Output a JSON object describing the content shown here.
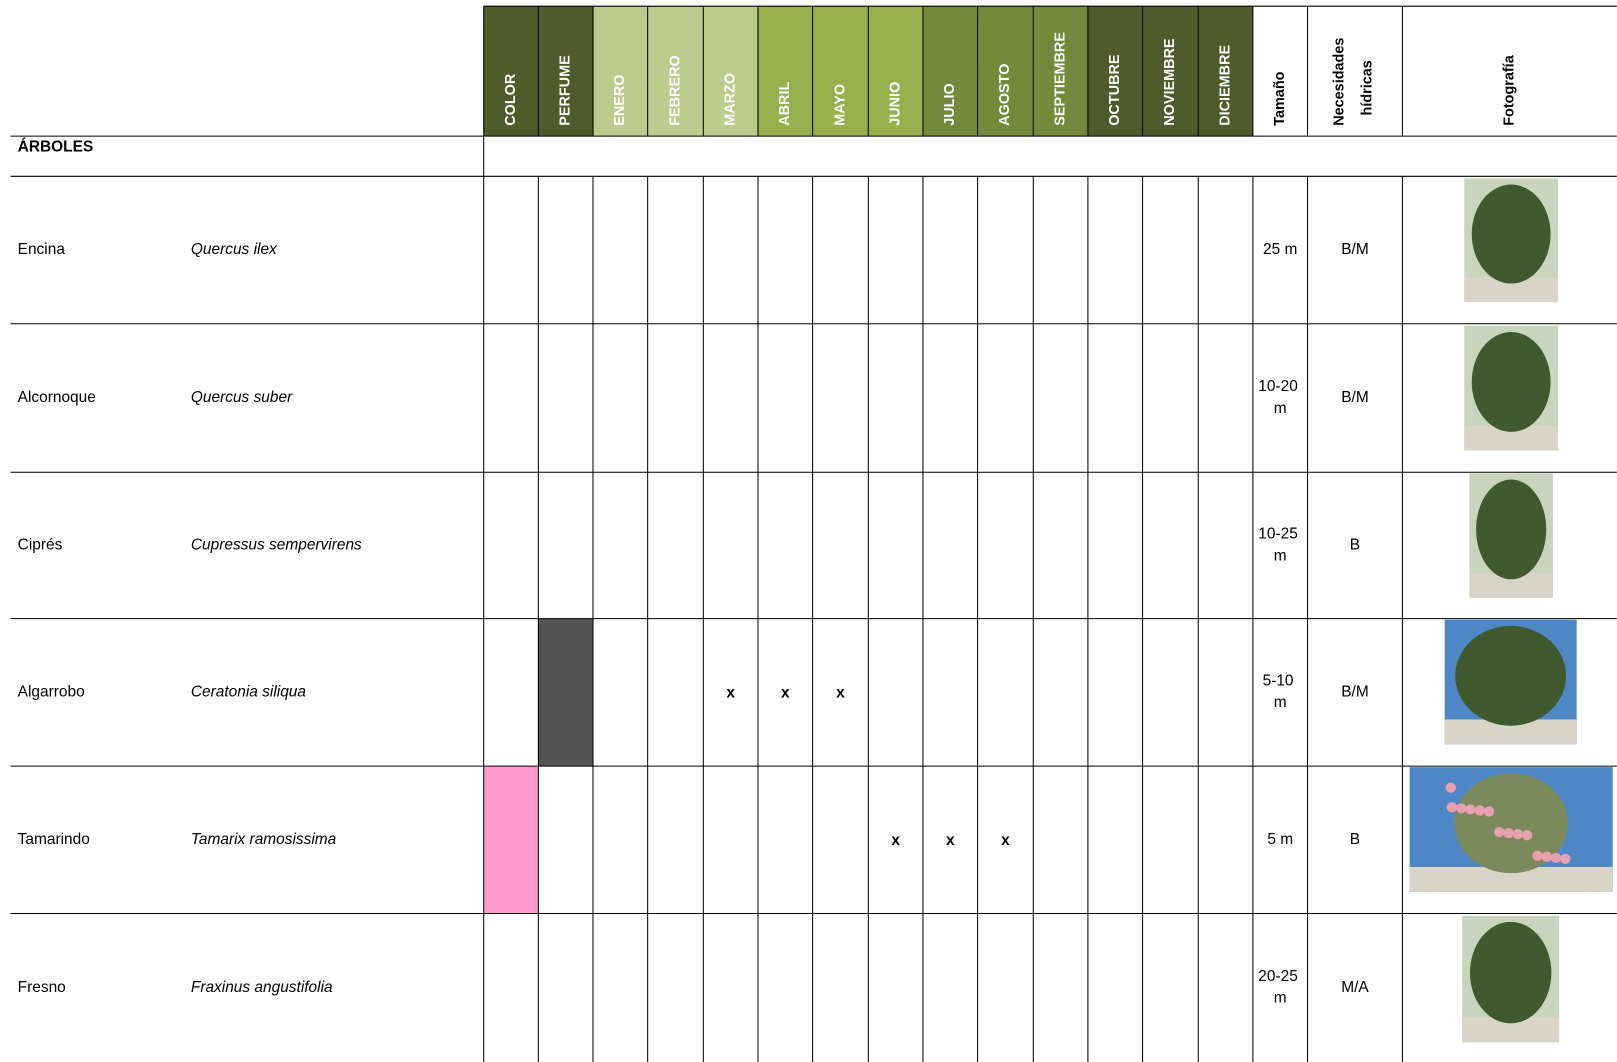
{
  "header": {
    "columns": [
      "COLOR",
      "PERFUME",
      "ENERO",
      "FEBRERO",
      "MARZO",
      "ABRIL",
      "MAYO",
      "JUNIO",
      "JULIO",
      "AGOSTO",
      "SEPTIEMBRE",
      "OCTUBRE",
      "NOVIEMBRE",
      "DICIEMBRE",
      "Tamaño",
      "Necesidades hídricas",
      "Fotografía"
    ]
  },
  "section": "ÁRBOLES",
  "rows": [
    {
      "name": "Encina",
      "latin": "Quercus ilex",
      "color": null,
      "perfume": null,
      "months": [
        null,
        null,
        null,
        null,
        null,
        null,
        null,
        null,
        null,
        null,
        null,
        null
      ],
      "size": "25 m",
      "water": "B/M"
    },
    {
      "name": "Alcornoque",
      "latin": "Quercus suber",
      "color": null,
      "perfume": null,
      "months": [
        null,
        null,
        null,
        null,
        null,
        null,
        null,
        null,
        null,
        null,
        null,
        null
      ],
      "size": "10-20 m",
      "water": "B/M"
    },
    {
      "name": "Ciprés",
      "latin": "Cupressus sempervirens",
      "color": null,
      "perfume": null,
      "months": [
        null,
        null,
        null,
        null,
        null,
        null,
        null,
        null,
        null,
        null,
        null,
        null
      ],
      "size": "10-25 m",
      "water": "B"
    },
    {
      "name": "Algarrobo",
      "latin": "Ceratonia siliqua",
      "color": null,
      "perfume": "#555555",
      "months": [
        null,
        null,
        "x",
        "x",
        "x",
        null,
        null,
        null,
        null,
        null,
        null,
        null
      ],
      "size": "5-10 m",
      "water": "B/M"
    },
    {
      "name": "Tamarindo",
      "latin": "Tamarix ramosissima",
      "color": "#ff99cc",
      "perfume": null,
      "months": [
        null,
        null,
        null,
        null,
        null,
        "x",
        "x",
        "x",
        null,
        null,
        null,
        null
      ],
      "size": "5 m",
      "water": "B"
    },
    {
      "name": "Fresno",
      "latin": "Fraxinus angustifolia",
      "color": null,
      "perfume": null,
      "months": [
        null,
        null,
        null,
        null,
        null,
        null,
        null,
        null,
        null,
        null,
        null,
        null
      ],
      "size": "20-25 m",
      "water": "M/A"
    }
  ]
}
